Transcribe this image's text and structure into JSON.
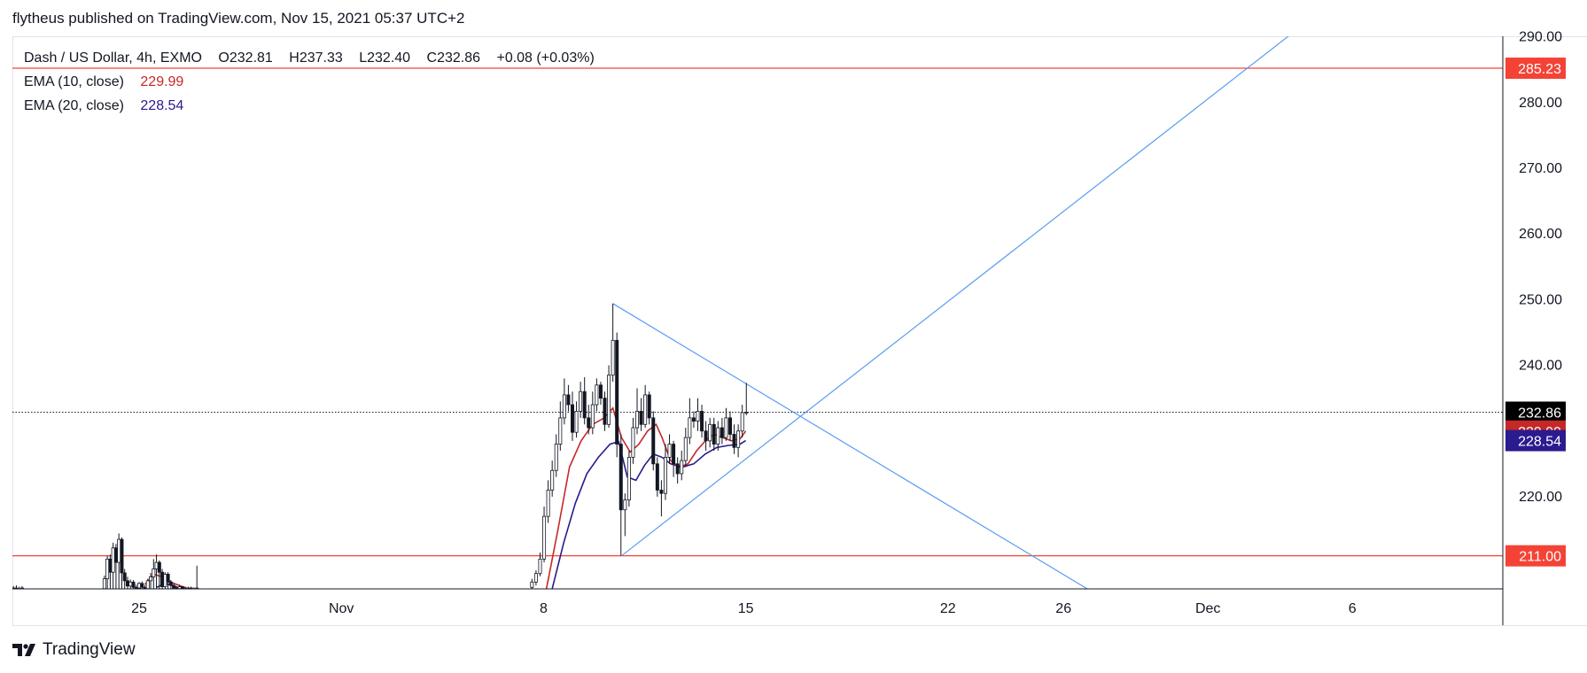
{
  "header": {
    "text": "flytheus published on TradingView.com, Nov 15, 2021 05:37 UTC+2"
  },
  "legend": {
    "symbol": "Dash / US Dollar, 4h, EXMO",
    "open": "O232.81",
    "high": "H237.33",
    "low": "L232.40",
    "close": "C232.86",
    "change": "+0.08 (+0.03%)",
    "ema10_label": "EMA (10, close)",
    "ema10_value": "229.99",
    "ema20_label": "EMA (20, close)",
    "ema20_value": "228.54"
  },
  "footer": {
    "brand": "TradingView",
    "logo": "tradingview-logo-icon"
  },
  "colors": {
    "ema10": "#c62828",
    "ema20": "#2a1b8f",
    "hline": "#f44336",
    "trend": "#5b9cf0",
    "candle": "#131722",
    "last_price_tag": "#000000"
  },
  "chart_data": {
    "type": "candlestick",
    "x_ticks": [
      {
        "label": "25",
        "day": 25
      },
      {
        "label": "Nov",
        "day": 32
      },
      {
        "label": "8",
        "day": 39
      },
      {
        "label": "15",
        "day": 46
      },
      {
        "label": "22",
        "day": 53
      },
      {
        "label": "26",
        "day": 57
      },
      {
        "label": "Dec",
        "day": 62
      },
      {
        "label": "6",
        "day": 67
      }
    ],
    "y_ticks": [
      "220.00",
      "230.00",
      "240.00",
      "250.00",
      "260.00",
      "270.00",
      "280.00",
      "290.00"
    ],
    "ylim": [
      206,
      290
    ],
    "horizontal_lines": [
      {
        "value": 285.23,
        "label": "285.23"
      },
      {
        "value": 211.0,
        "label": "211.00"
      }
    ],
    "price_tags": [
      {
        "value": 232.86,
        "label": "232.86",
        "color": "#000000"
      },
      {
        "value": 229.99,
        "label": "229.99",
        "color": "#c62828"
      },
      {
        "value": 228.54,
        "label": "228.54",
        "color": "#2a1b8f"
      }
    ],
    "last_price": 232.86,
    "trendlines": [
      {
        "from": [
          41.4,
          249.4
        ],
        "to": [
          58.0,
          205.5
        ]
      },
      {
        "from": [
          41.7,
          211.0
        ],
        "to": [
          64.9,
          290.5
        ]
      }
    ],
    "segments": [
      {
        "x": [
          18.75,
          18.85,
          18.95,
          19.05,
          19.15,
          19.25,
          19.35,
          19.45,
          19.55,
          19.65,
          19.75,
          19.85,
          19.95,
          20.05,
          20.15,
          20.25,
          20.35,
          20.45,
          20.55,
          20.65,
          20.75,
          20.85,
          20.95
        ],
        "open": [
          205.9,
          206.0,
          206.1,
          206.0,
          205.9,
          206.0,
          206.0,
          206.1,
          206.0,
          206.1,
          206.5,
          206.0,
          205.9,
          206.0,
          206.0,
          205.9,
          206.1,
          206.0,
          206.2,
          206.0,
          206.1,
          206.0,
          206.0
        ],
        "close": [
          206.0,
          206.1,
          206.0,
          205.9,
          206.0,
          206.0,
          206.1,
          206.0,
          206.1,
          206.4,
          206.0,
          205.9,
          206.0,
          206.0,
          205.9,
          206.1,
          206.0,
          206.2,
          206.0,
          206.1,
          206.0,
          206.0,
          206.1
        ],
        "high": [
          206.4,
          206.5,
          206.8,
          206.3,
          206.2,
          206.3,
          206.9,
          207.2,
          206.5,
          206.7,
          208.6,
          206.4,
          206.2,
          206.3,
          206.3,
          206.2,
          206.6,
          206.3,
          206.9,
          206.4,
          206.5,
          206.3,
          206.4
        ],
        "low": [
          205.8,
          205.8,
          205.8,
          205.8,
          205.8,
          205.8,
          205.8,
          205.8,
          205.8,
          205.8,
          205.8,
          205.8,
          205.8,
          205.8,
          205.8,
          205.8,
          205.8,
          205.8,
          205.8,
          205.8,
          205.8,
          205.8,
          205.8
        ]
      },
      {
        "x": [
          23.8,
          23.9,
          24.0,
          24.1,
          24.2,
          24.3,
          24.4,
          24.5,
          24.6,
          24.7,
          24.8,
          24.9,
          25.0,
          25.1,
          25.2,
          25.3,
          25.4,
          25.5,
          25.6,
          25.7,
          25.8,
          25.9,
          26.0,
          26.1,
          26.2,
          26.3,
          26.4,
          26.5,
          26.6,
          26.7,
          26.8,
          26.9,
          27.0
        ],
        "open": [
          206.0,
          207.5,
          210.5,
          208.5,
          212.2,
          210.0,
          213.5,
          208.4,
          207.2,
          206.4,
          207.0,
          206.2,
          206.1,
          206.8,
          206.2,
          206.0,
          207.2,
          207.8,
          209.0,
          210.0,
          208.5,
          206.3,
          208.2,
          207.0,
          206.5,
          206.1,
          206.0,
          206.3,
          206.0,
          206.0,
          206.1,
          206.0,
          206.0
        ],
        "close": [
          207.5,
          210.5,
          208.5,
          212.2,
          210.0,
          213.5,
          208.4,
          207.2,
          206.4,
          207.0,
          206.2,
          206.1,
          206.8,
          206.2,
          206.0,
          207.2,
          207.8,
          209.0,
          210.0,
          208.5,
          206.3,
          208.2,
          207.0,
          206.5,
          206.1,
          206.0,
          206.3,
          206.0,
          206.0,
          206.1,
          206.0,
          206.0,
          206.1
        ],
        "high": [
          208.0,
          211.0,
          211.2,
          213.0,
          212.8,
          214.4,
          213.8,
          209.0,
          207.8,
          207.4,
          207.3,
          206.6,
          207.0,
          207.1,
          206.5,
          207.5,
          208.4,
          210.5,
          211.2,
          210.3,
          209.0,
          208.5,
          208.5,
          207.3,
          206.8,
          206.4,
          206.6,
          206.4,
          206.3,
          206.3,
          206.3,
          206.2,
          209.5
        ],
        "low": [
          205.8,
          205.8,
          205.8,
          205.8,
          205.8,
          205.8,
          205.8,
          205.8,
          205.8,
          205.8,
          205.8,
          205.8,
          205.8,
          205.8,
          205.8,
          205.8,
          205.8,
          205.8,
          205.8,
          205.8,
          205.8,
          205.8,
          205.8,
          205.8,
          205.8,
          205.8,
          205.8,
          205.8,
          205.8,
          205.8,
          205.8,
          205.8,
          205.8
        ]
      },
      {
        "x": [
          38.6,
          38.74,
          38.88,
          39.02,
          39.16,
          39.3,
          39.44,
          39.58,
          39.72,
          39.86,
          40.0,
          40.14,
          40.28,
          40.42,
          40.56,
          40.7,
          40.84,
          40.98,
          41.12,
          41.26,
          41.4,
          41.54,
          41.68,
          41.82,
          41.96,
          42.1,
          42.24,
          42.38,
          42.52,
          42.66,
          42.8,
          42.94,
          43.08,
          43.22,
          43.36,
          43.5,
          43.64,
          43.78,
          43.92,
          44.06,
          44.2,
          44.34,
          44.48,
          44.62,
          44.76,
          44.9,
          45.04,
          45.18,
          45.32,
          45.46,
          45.6,
          45.74,
          45.88,
          46.02
        ],
        "open": [
          206.2,
          207.0,
          208.3,
          210.5,
          217.0,
          221.0,
          224.0,
          228.0,
          232.0,
          235.5,
          234.0,
          229.8,
          233.0,
          236.0,
          232.0,
          230.5,
          234.0,
          237.0,
          235.0,
          231.0,
          238.5,
          243.8,
          228.0,
          218.0,
          219.5,
          226.0,
          230.5,
          233.0,
          231.0,
          235.5,
          232.0,
          225.0,
          221.0,
          220.5,
          226.0,
          228.0,
          225.0,
          223.5,
          225.5,
          229.0,
          232.0,
          231.5,
          233.0,
          230.0,
          228.5,
          231.0,
          228.0,
          230.5,
          229.0,
          232.0,
          229.5,
          227.5,
          230.0,
          232.8
        ],
        "close": [
          207.0,
          208.3,
          210.5,
          217.0,
          221.0,
          224.0,
          228.0,
          232.0,
          235.5,
          234.0,
          229.8,
          233.0,
          236.0,
          232.0,
          230.5,
          234.0,
          237.0,
          235.0,
          231.0,
          238.5,
          243.8,
          228.0,
          218.0,
          219.5,
          226.0,
          230.5,
          233.0,
          231.0,
          235.5,
          232.0,
          225.0,
          221.0,
          220.5,
          226.0,
          228.0,
          225.0,
          223.5,
          225.5,
          229.0,
          232.0,
          231.5,
          233.0,
          230.0,
          228.5,
          231.0,
          228.0,
          230.5,
          229.0,
          232.0,
          229.5,
          227.5,
          230.0,
          232.8,
          232.86
        ],
        "high": [
          207.5,
          208.8,
          211.5,
          218.5,
          222.5,
          225.5,
          229.5,
          234.5,
          238.0,
          237.0,
          236.0,
          234.5,
          237.5,
          238.2,
          234.0,
          236.0,
          238.0,
          237.5,
          236.0,
          240.0,
          249.4,
          245.0,
          229.5,
          220.5,
          227.0,
          232.0,
          236.5,
          235.0,
          237.0,
          236.0,
          233.0,
          226.0,
          222.5,
          228.0,
          229.5,
          228.5,
          226.0,
          227.0,
          230.5,
          235.0,
          233.0,
          235.0,
          234.0,
          231.5,
          232.0,
          232.0,
          231.5,
          232.0,
          233.5,
          233.0,
          231.0,
          231.0,
          234.0,
          237.33
        ],
        "low": [
          205.8,
          206.5,
          207.9,
          210.0,
          216.0,
          220.0,
          223.0,
          227.0,
          231.0,
          233.0,
          228.5,
          229.0,
          232.0,
          231.0,
          229.5,
          229.5,
          233.0,
          234.0,
          230.0,
          230.5,
          237.5,
          226.0,
          211.0,
          214.0,
          218.5,
          225.0,
          229.5,
          230.0,
          230.5,
          231.0,
          224.0,
          220.0,
          217.0,
          219.5,
          225.0,
          223.0,
          222.0,
          222.5,
          224.5,
          228.0,
          230.5,
          230.0,
          229.0,
          227.0,
          227.5,
          227.0,
          227.0,
          228.0,
          228.5,
          228.5,
          226.5,
          226.0,
          229.0,
          232.4
        ]
      }
    ],
    "ema10": [
      [
        39.1,
        206.0
      ],
      [
        39.5,
        215.0
      ],
      [
        39.9,
        224.5
      ],
      [
        40.3,
        228.5
      ],
      [
        40.7,
        231.0
      ],
      [
        41.1,
        232.0
      ],
      [
        41.4,
        233.5
      ],
      [
        41.7,
        229.0
      ],
      [
        42.0,
        226.8
      ],
      [
        42.3,
        228.0
      ],
      [
        42.6,
        230.0
      ],
      [
        42.9,
        231.0
      ],
      [
        43.1,
        229.0
      ],
      [
        43.4,
        225.5
      ],
      [
        43.7,
        224.5
      ],
      [
        44.0,
        225.0
      ],
      [
        44.3,
        227.0
      ],
      [
        44.6,
        228.5
      ],
      [
        44.9,
        229.5
      ],
      [
        45.2,
        229.0
      ],
      [
        45.5,
        228.5
      ],
      [
        45.8,
        228.8
      ],
      [
        46.0,
        229.99
      ]
    ],
    "ema20": [
      [
        39.3,
        206.0
      ],
      [
        39.7,
        213.0
      ],
      [
        40.1,
        219.0
      ],
      [
        40.5,
        223.5
      ],
      [
        40.9,
        226.0
      ],
      [
        41.3,
        228.0
      ],
      [
        41.6,
        228.4
      ],
      [
        41.9,
        223.0
      ],
      [
        42.2,
        222.5
      ],
      [
        42.5,
        224.8
      ],
      [
        42.8,
        226.5
      ],
      [
        43.1,
        226.0
      ],
      [
        43.4,
        225.0
      ],
      [
        43.8,
        224.5
      ],
      [
        44.2,
        225.0
      ],
      [
        44.6,
        226.5
      ],
      [
        45.0,
        227.5
      ],
      [
        45.4,
        227.8
      ],
      [
        45.8,
        228.0
      ],
      [
        46.0,
        228.54
      ]
    ],
    "ema10_early": [
      [
        25.2,
        206.6
      ],
      [
        25.5,
        208.2
      ],
      [
        25.8,
        207.8
      ],
      [
        26.2,
        206.8
      ],
      [
        26.8,
        205.8
      ]
    ],
    "ema20_early": [
      [
        25.6,
        206.2
      ],
      [
        25.9,
        206.8
      ],
      [
        26.2,
        206.4
      ],
      [
        26.5,
        205.8
      ]
    ]
  }
}
